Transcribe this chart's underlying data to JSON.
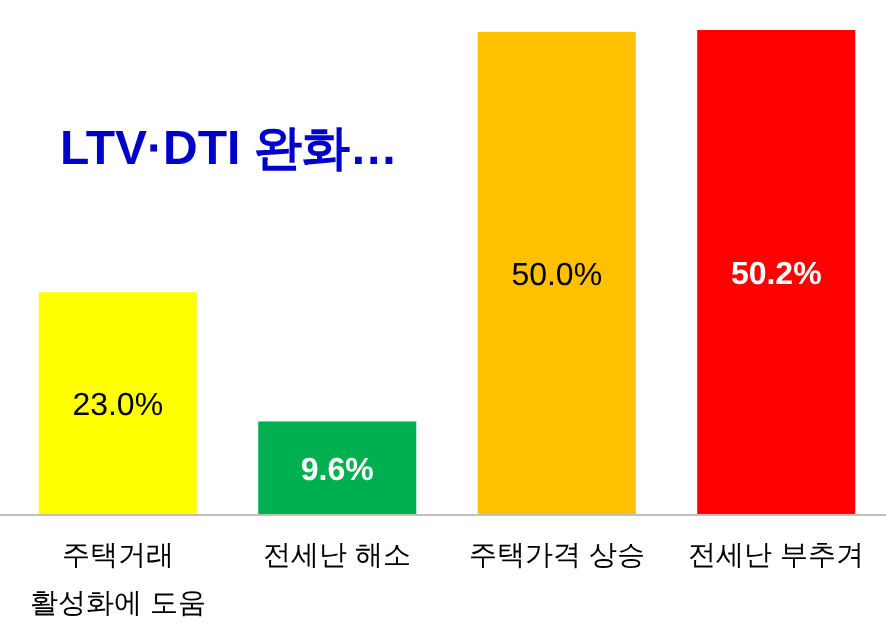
{
  "chart_data": {
    "type": "bar",
    "title": "LTV·DTI 완화…",
    "categories": [
      "주택거래\n활성화에 도움",
      "전세난 해소",
      "주택가격 상승",
      "전세난 부추겨"
    ],
    "values": [
      23.0,
      9.6,
      50.0,
      50.2
    ],
    "value_labels": [
      "23.0%",
      "9.6%",
      "50.0%",
      "50.2%"
    ],
    "colors": [
      "#ffff00",
      "#00b050",
      "#ffc000",
      "#ff0000"
    ],
    "relative": false
  }
}
